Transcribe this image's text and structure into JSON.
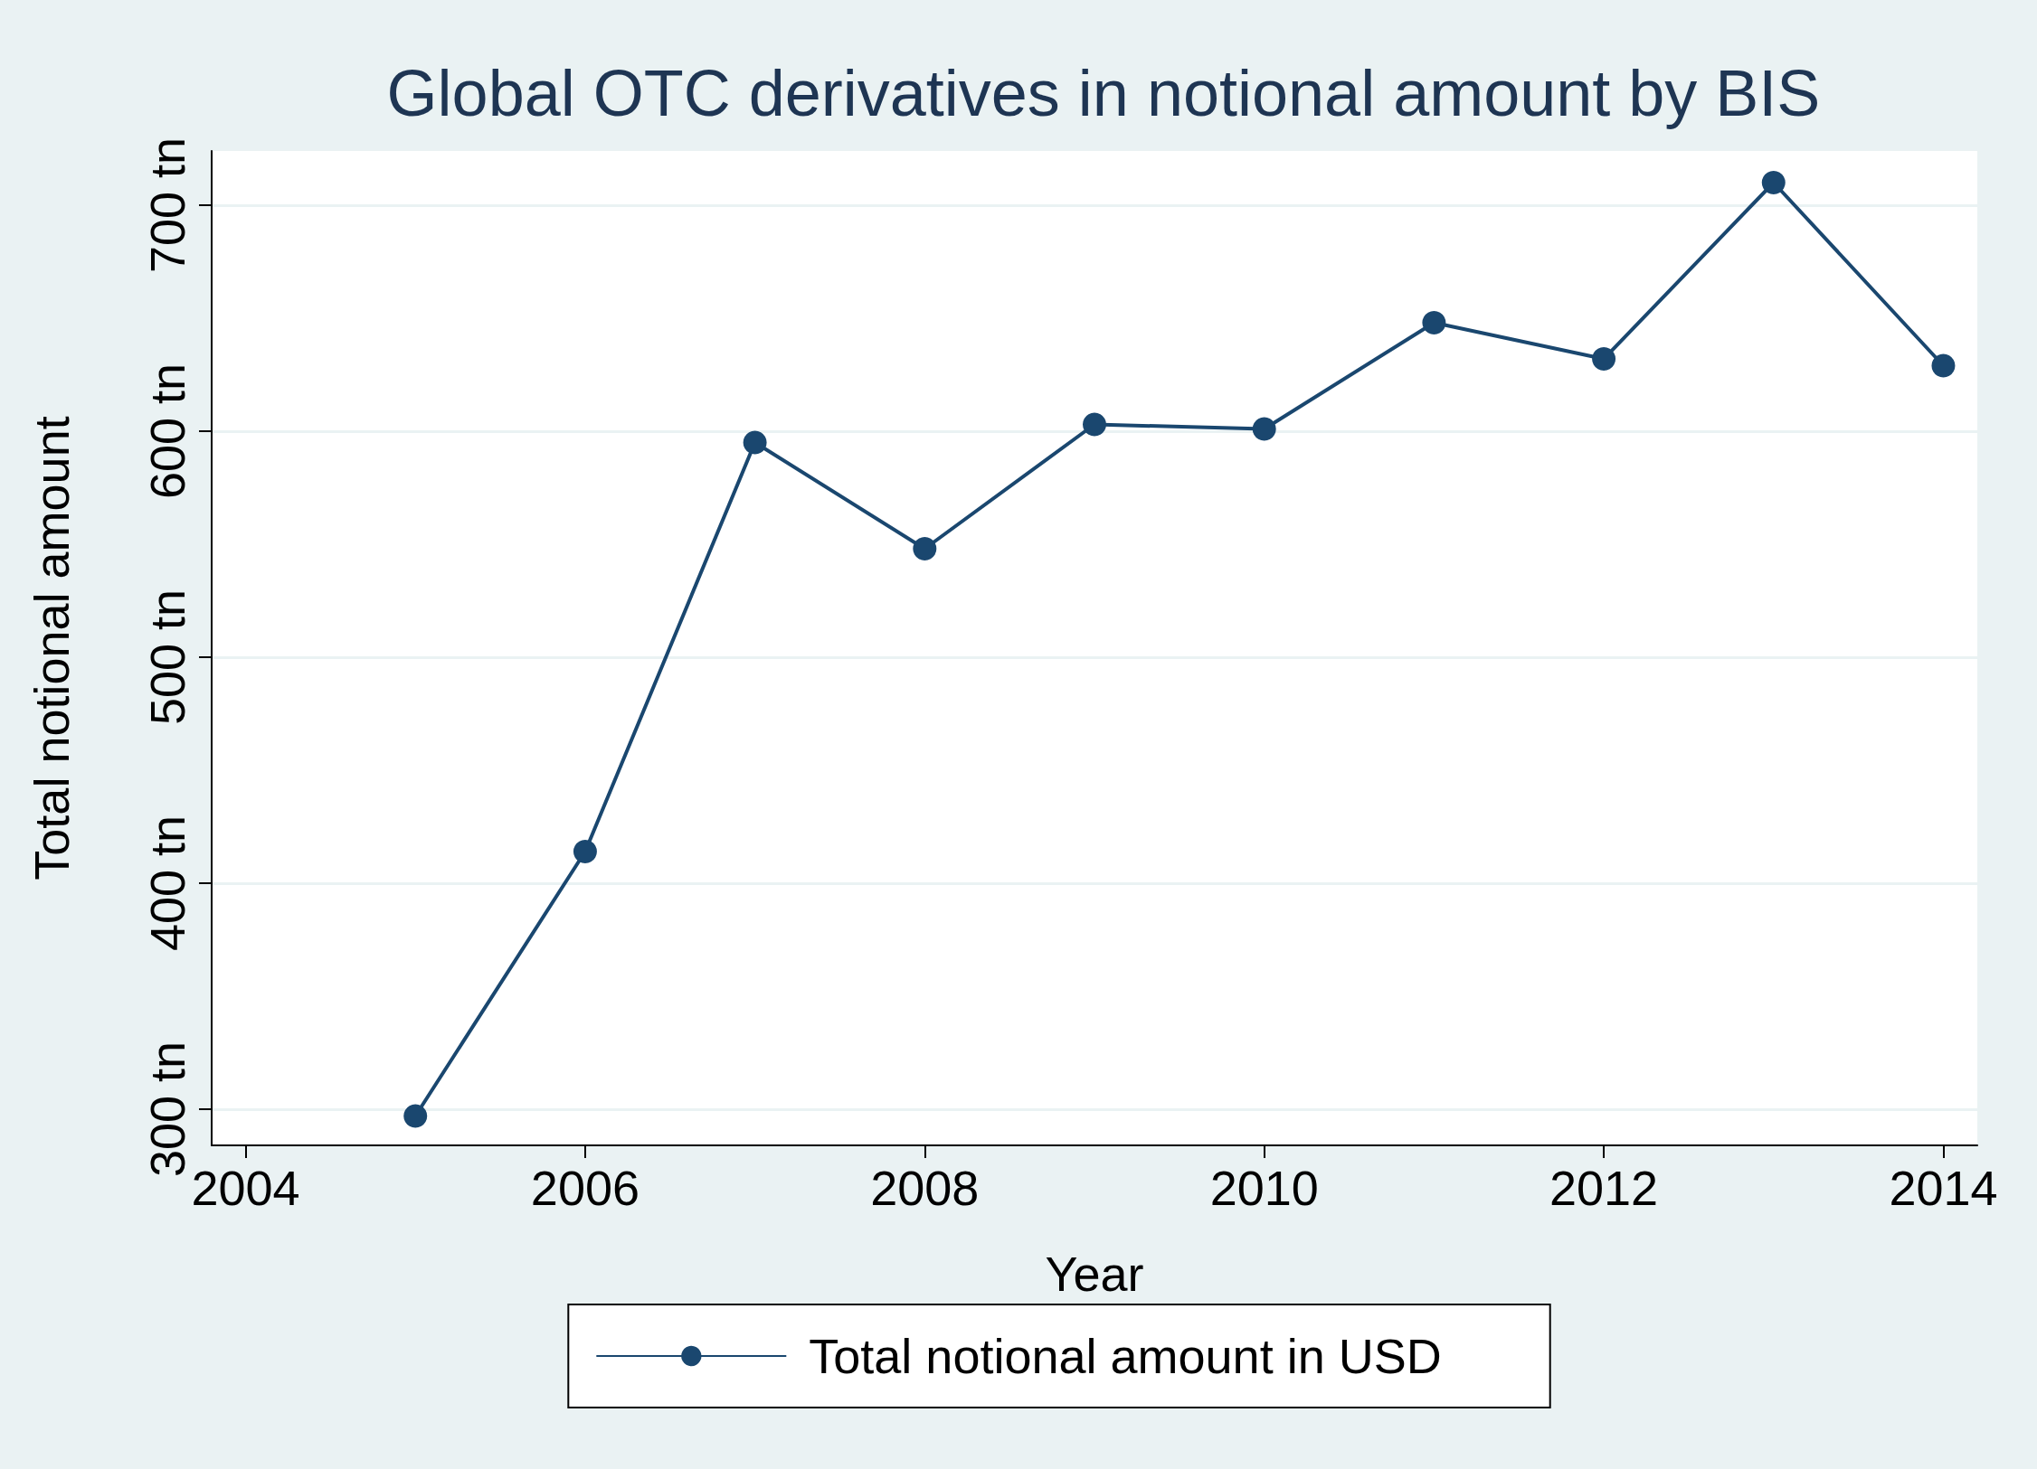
{
  "chart_data": {
    "type": "line",
    "title": "Global OTC derivatives in notional amount by BIS",
    "xlabel": "Year",
    "ylabel": "Total notional amount",
    "x": [
      2005,
      2006,
      2007,
      2008,
      2009,
      2010,
      2011,
      2012,
      2013,
      2014
    ],
    "series": [
      {
        "name": "Total notional amount in USD",
        "color": "#1a476f",
        "values": [
          297,
          414,
          595,
          548,
          603,
          601,
          648,
          632,
          710,
          629
        ]
      }
    ],
    "xlim": [
      2003.8,
      2014.2
    ],
    "xticks": [
      2004,
      2006,
      2008,
      2010,
      2012,
      2014
    ],
    "ylim": [
      284,
      724
    ],
    "yticks": [
      {
        "value": 300,
        "label": "300 tn"
      },
      {
        "value": 400,
        "label": "400 tn"
      },
      {
        "value": 500,
        "label": "500 tn"
      },
      {
        "value": 600,
        "label": "600 tn"
      },
      {
        "value": 700,
        "label": "700 tn"
      }
    ],
    "grid": "y",
    "legend": "bottom",
    "marker": "circle"
  }
}
